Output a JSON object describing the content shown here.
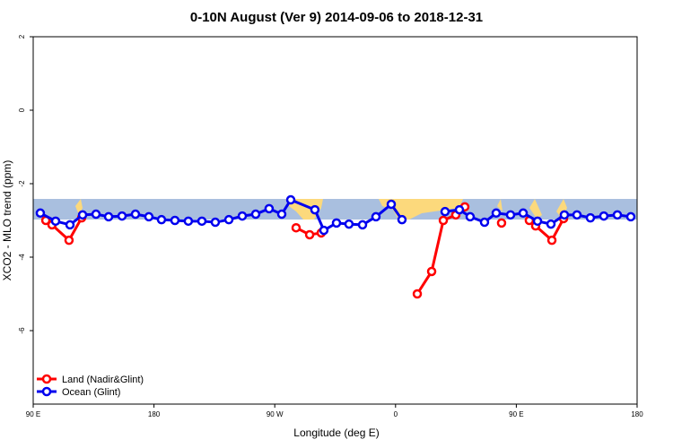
{
  "chart_data": {
    "type": "line",
    "title": "0-10N August (Ver 9)   2014-09-06 to 2018-12-31",
    "x_label": "Longitude (deg E)",
    "y_label": "XCO2 - MLO trend (ppm)",
    "xlim": [
      90,
      540
    ],
    "ylim": [
      -8,
      2
    ],
    "xticks": [
      {
        "value": 90,
        "label": "90 E"
      },
      180,
      {
        "value": 270,
        "label": "90 W"
      },
      {
        "value": 360,
        "label": "0"
      },
      {
        "value": 450,
        "label": "90 E"
      },
      {
        "value": 540,
        "label": "180"
      }
    ],
    "yticks": [
      2,
      0,
      -2,
      -4,
      -6
    ],
    "legend": "bottom-left",
    "series": [
      {
        "name": "Land (Nadir&Glint)",
        "color": "#ff0000",
        "x": [
          99.4,
          104.0,
          116.7,
          126.1,
          null,
          285.9,
          296.0,
          304.6,
          null,
          376.2,
          386.9,
          395.6,
          404.9,
          411.6,
          null,
          439.0,
          null,
          459.7,
          464.4,
          476.5,
          485.2
        ],
        "values": [
          -3.0,
          -3.12,
          -3.54,
          -2.93,
          null,
          -3.2,
          -3.39,
          -3.34,
          null,
          -5.0,
          -4.39,
          -3.0,
          -2.85,
          -2.63,
          null,
          -3.07,
          null,
          -3.0,
          -3.15,
          -3.54,
          -2.95
        ]
      },
      {
        "name": "Ocean (Glint)",
        "color": "#0000ee",
        "x": [
          95.3,
          106.7,
          117.4,
          126.8,
          136.8,
          146.2,
          156.2,
          166.2,
          176.2,
          185.6,
          195.6,
          205.6,
          215.7,
          225.7,
          235.8,
          245.8,
          255.8,
          265.8,
          275.2,
          281.9,
          299.9,
          306.6,
          316.0,
          325.3,
          335.4,
          345.4,
          356.8,
          364.8,
          null,
          396.9,
          407.6,
          415.6,
          426.3,
          435.0,
          445.7,
          455.1,
          465.8,
          475.8,
          485.8,
          495.2,
          505.2,
          515.2,
          525.3,
          535.3
        ],
        "values": [
          -2.8,
          -3.02,
          -3.12,
          -2.85,
          -2.83,
          -2.9,
          -2.88,
          -2.83,
          -2.9,
          -2.98,
          -3.0,
          -3.02,
          -3.02,
          -3.05,
          -2.98,
          -2.88,
          -2.83,
          -2.68,
          -2.83,
          -2.44,
          -2.71,
          -3.27,
          -3.07,
          -3.1,
          -3.12,
          -2.9,
          -2.56,
          -2.98,
          null,
          -2.76,
          -2.71,
          -2.9,
          -3.05,
          -2.8,
          -2.85,
          -2.8,
          -3.02,
          -3.1,
          -2.85,
          -2.85,
          -2.93,
          -2.88,
          -2.85,
          -2.9
        ]
      }
    ]
  }
}
